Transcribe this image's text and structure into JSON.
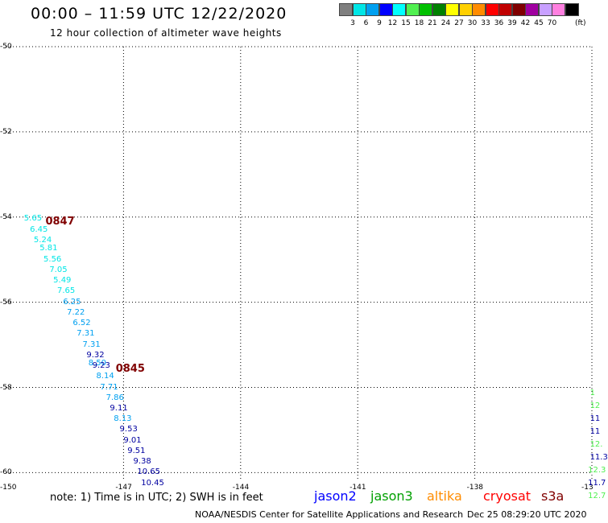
{
  "header": {
    "title": "00:00 – 11:59 UTC 12/22/2020",
    "subtitle": "12 hour collection of altimeter wave heights"
  },
  "legend": {
    "unit": "(ft)",
    "items": [
      {
        "label": "",
        "color": "#7f7f7f"
      },
      {
        "label": "3",
        "color": "#00e6e6"
      },
      {
        "label": "6",
        "color": "#00a0f0"
      },
      {
        "label": "9",
        "color": "#0000ff"
      },
      {
        "label": "12",
        "color": "#00ffff"
      },
      {
        "label": "15",
        "color": "#50f050"
      },
      {
        "label": "18",
        "color": "#00c000"
      },
      {
        "label": "21",
        "color": "#008000"
      },
      {
        "label": "24",
        "color": "#ffff00"
      },
      {
        "label": "27",
        "color": "#ffd000"
      },
      {
        "label": "30",
        "color": "#ff8c00"
      },
      {
        "label": "33",
        "color": "#ff0000"
      },
      {
        "label": "36",
        "color": "#c00000"
      },
      {
        "label": "39",
        "color": "#800000"
      },
      {
        "label": "42",
        "color": "#a000a0"
      },
      {
        "label": "45",
        "color": "#c8a0ff"
      },
      {
        "label": "70",
        "color": "#ff80e0"
      },
      {
        "label": "",
        "color": "#000000"
      }
    ]
  },
  "map": {
    "lat_ticks": [
      "-50",
      "-52",
      "-54",
      "-56",
      "-58",
      "-60"
    ],
    "lon_ticks": [
      "-150",
      "-147",
      "-144",
      "-141",
      "-138",
      "-13"
    ],
    "lat_range": [
      -60.2,
      -50
    ],
    "lon_range": [
      -150,
      -135
    ],
    "grid": true
  },
  "track_west": [
    {
      "lon": -149.55,
      "lat": -54.05,
      "text": "5.65",
      "color": "#00e6e6"
    },
    {
      "lon": -149.4,
      "lat": -54.3,
      "text": "6.45",
      "color": "#00e6e6"
    },
    {
      "lon": -149.3,
      "lat": -54.55,
      "text": "5.24",
      "color": "#00e6e6"
    },
    {
      "lon": -149.15,
      "lat": -54.75,
      "text": "5.81",
      "color": "#00e6e6"
    },
    {
      "lon": -149.05,
      "lat": -55.0,
      "text": "5.56",
      "color": "#00e6e6"
    },
    {
      "lon": -148.9,
      "lat": -55.25,
      "text": "7.05",
      "color": "#00e6e6"
    },
    {
      "lon": -148.8,
      "lat": -55.5,
      "text": "5.49",
      "color": "#00e6e6"
    },
    {
      "lon": -148.7,
      "lat": -55.75,
      "text": "7.65",
      "color": "#00e6e6"
    },
    {
      "lon": -148.55,
      "lat": -56.0,
      "text": "6.25",
      "color": "#00a0f0"
    },
    {
      "lon": -148.45,
      "lat": -56.25,
      "text": "7.22",
      "color": "#00a0f0"
    },
    {
      "lon": -148.3,
      "lat": -56.5,
      "text": "6.52",
      "color": "#00a0f0"
    },
    {
      "lon": -148.2,
      "lat": -56.75,
      "text": "7.31",
      "color": "#00a0f0"
    },
    {
      "lon": -148.05,
      "lat": -57.0,
      "text": "7.31",
      "color": "#00a0f0"
    },
    {
      "lon": -147.95,
      "lat": -57.25,
      "text": "9.32",
      "color": "#0000a0"
    },
    {
      "lon": -147.9,
      "lat": -57.45,
      "text": "8.50",
      "color": "#00a0f0"
    },
    {
      "lon": -147.8,
      "lat": -57.5,
      "text": "9.23",
      "color": "#0000a0"
    },
    {
      "lon": -147.7,
      "lat": -57.75,
      "text": "8.14",
      "color": "#00a0f0"
    },
    {
      "lon": -147.6,
      "lat": -58.0,
      "text": "7.71",
      "color": "#00a0f0"
    },
    {
      "lon": -147.45,
      "lat": -58.25,
      "text": "7.86",
      "color": "#00a0f0"
    },
    {
      "lon": -147.35,
      "lat": -58.5,
      "text": "9.11",
      "color": "#0000a0"
    },
    {
      "lon": -147.25,
      "lat": -58.75,
      "text": "8.13",
      "color": "#00a0f0"
    },
    {
      "lon": -147.1,
      "lat": -59.0,
      "text": "9.53",
      "color": "#0000a0"
    },
    {
      "lon": -147.0,
      "lat": -59.25,
      "text": "9.01",
      "color": "#0000a0"
    },
    {
      "lon": -146.9,
      "lat": -59.5,
      "text": "9.51",
      "color": "#0000a0"
    },
    {
      "lon": -146.75,
      "lat": -59.75,
      "text": "9.38",
      "color": "#0000a0"
    },
    {
      "lon": -146.65,
      "lat": -60.0,
      "text": "10.65",
      "color": "#0000a0"
    },
    {
      "lon": -146.55,
      "lat": -60.25,
      "text": "10.45",
      "color": "#0000a0"
    }
  ],
  "track_east": [
    {
      "lon": -135.05,
      "lat": -58.15,
      "text": "1",
      "color": "#50f050"
    },
    {
      "lon": -135.05,
      "lat": -58.45,
      "text": "12",
      "color": "#50f050"
    },
    {
      "lon": -135.05,
      "lat": -58.75,
      "text": "11",
      "color": "#0000a0"
    },
    {
      "lon": -135.05,
      "lat": -59.05,
      "text": "11",
      "color": "#0000a0"
    },
    {
      "lon": -135.05,
      "lat": -59.35,
      "text": "12.",
      "color": "#50f050"
    },
    {
      "lon": -135.05,
      "lat": -59.65,
      "text": "11.3",
      "color": "#0000a0"
    },
    {
      "lon": -135.1,
      "lat": -59.95,
      "text": "12.3",
      "color": "#50f050"
    },
    {
      "lon": -135.1,
      "lat": -60.25,
      "text": "11.7",
      "color": "#0000a0"
    },
    {
      "lon": -135.1,
      "lat": -60.55,
      "text": "12.7",
      "color": "#50f050"
    }
  ],
  "time_labels": [
    {
      "lon": -149.0,
      "lat": -54.1,
      "text": "0847"
    },
    {
      "lon": -147.2,
      "lat": -57.55,
      "text": "0845"
    }
  ],
  "footer": {
    "note": "note:  1) Time is in UTC;  2) SWH is in feet",
    "satellites": [
      {
        "name": "jason2",
        "color": "#0000ff"
      },
      {
        "name": "jason3",
        "color": "#00a000"
      },
      {
        "name": "altika",
        "color": "#ff8c00"
      },
      {
        "name": "cryosat",
        "color": "#ff0000"
      },
      {
        "name": "s3a",
        "color": "#800000"
      }
    ],
    "credit": "NOAA/NESDIS Center for Satellite Applications and Research",
    "timestamp": "Dec 25 08:29:20 UTC 2020"
  }
}
